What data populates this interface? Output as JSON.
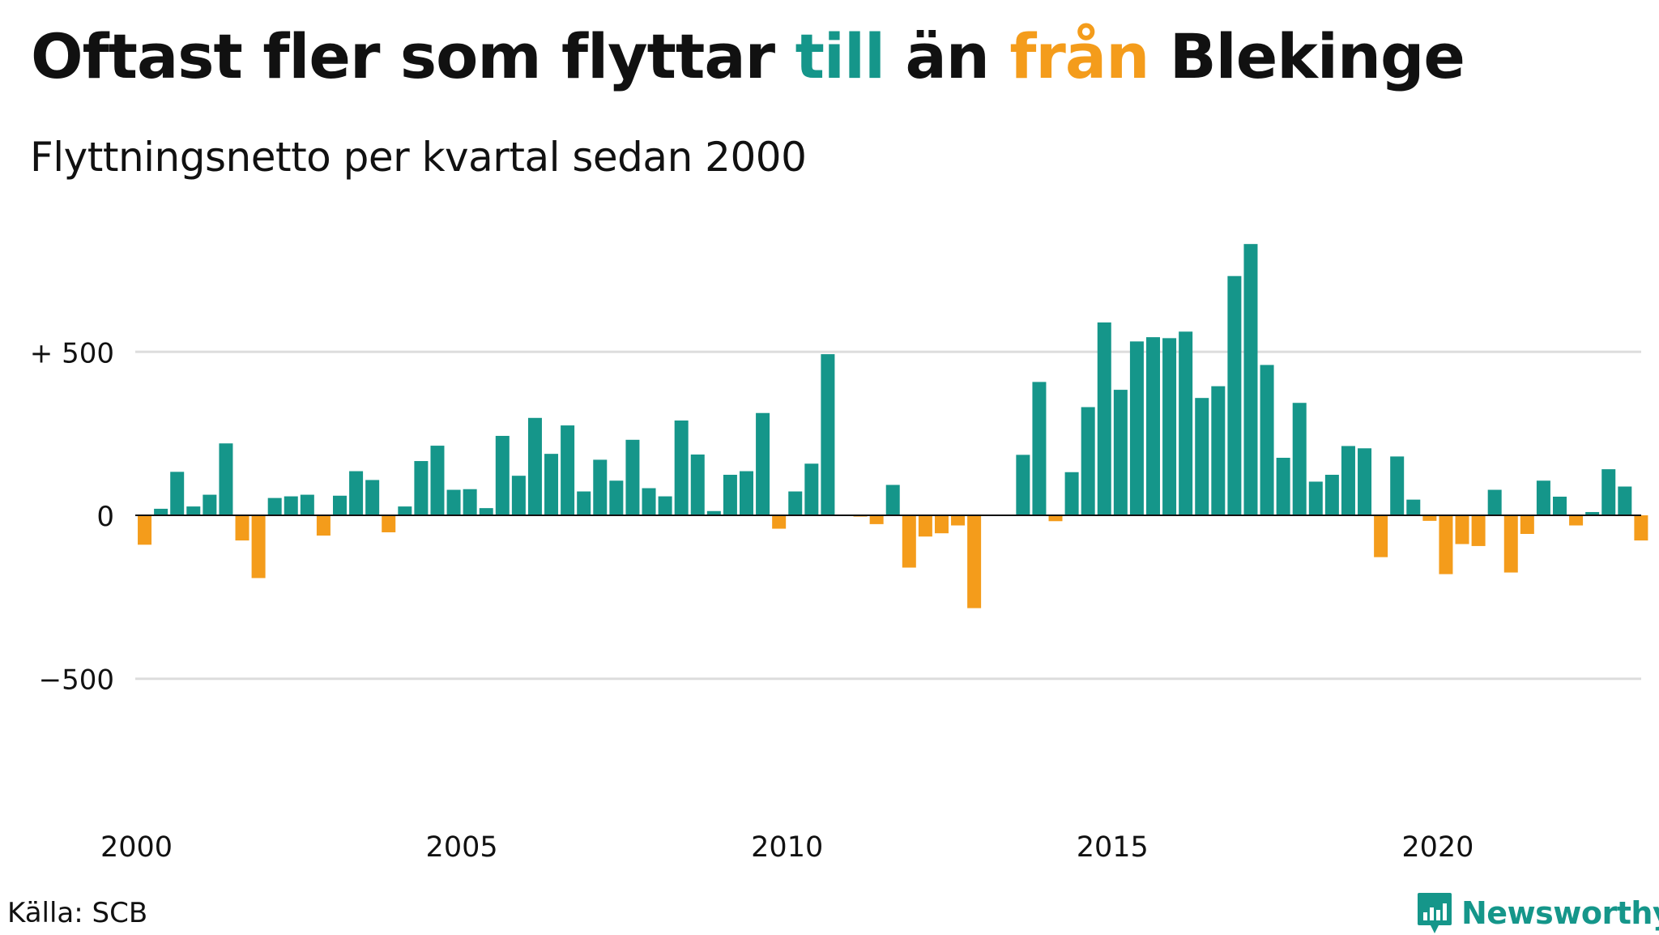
{
  "title": {
    "part1": "Oftast fler som flyttar ",
    "till": "till",
    "part2": " än ",
    "fran": "från",
    "part3": " Blekinge"
  },
  "subtitle": "Flyttningsnetto per kvartal sedan 2000",
  "source": "Källa: SCB",
  "brand": {
    "name": "Newsworthy",
    "icon": "newsworthy-logo-icon"
  },
  "colors": {
    "positive": "#15968a",
    "negative": "#f49c1b",
    "grid": "#dddddd",
    "zero_line": "#111111"
  },
  "chart_data": {
    "type": "bar",
    "title": "Oftast fler som flyttar till än från Blekinge",
    "subtitle": "Flyttningsnetto per kvartal sedan 2000",
    "xlabel": "",
    "ylabel": "",
    "start_year": 2000,
    "periods_per_year": 4,
    "x_tick_labels": [
      "2000",
      "2005",
      "2010",
      "2015",
      "2020"
    ],
    "y_ticks": [
      {
        "value": 500,
        "label": "+ 500"
      },
      {
        "value": 0,
        "label": "0"
      },
      {
        "value": -500,
        "label": "−500"
      }
    ],
    "ylim": [
      -870,
      870
    ],
    "grid": true,
    "legend": "none (colors explained in title: green = till, orange = från)",
    "values": [
      -90,
      20,
      133,
      27,
      63,
      220,
      -77,
      -192,
      53,
      58,
      63,
      -62,
      60,
      135,
      108,
      -52,
      27,
      166,
      213,
      78,
      80,
      22,
      243,
      121,
      298,
      188,
      275,
      73,
      170,
      106,
      231,
      83,
      58,
      290,
      186,
      13,
      124,
      135,
      313,
      -41,
      73,
      158,
      493,
      0,
      -4,
      -27,
      93,
      -160,
      -65,
      -55,
      -31,
      -284,
      0,
      0,
      185,
      408,
      -18,
      132,
      331,
      590,
      384,
      532,
      545,
      542,
      562,
      359,
      395,
      732,
      830,
      460,
      176,
      344,
      103,
      124,
      212,
      205,
      -128,
      180,
      48,
      -17,
      -180,
      -88,
      -94,
      78,
      -175,
      -57,
      106,
      57,
      -31,
      10,
      141,
      88,
      -77
    ]
  }
}
